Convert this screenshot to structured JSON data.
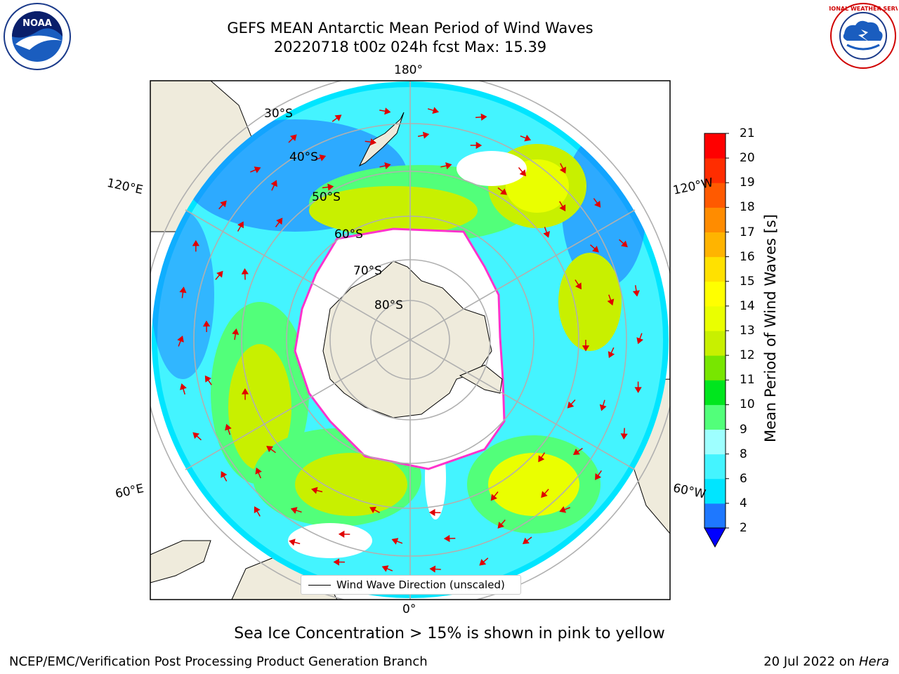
{
  "title": {
    "line1": "GEFS MEAN Antarctic Mean Period of Wind Waves",
    "line2": "20220718 t00z 024h fcst   Max: 15.39"
  },
  "logos": {
    "noaa_text": "NOAA",
    "noaa_ring": "NATIONAL OCEANIC AND ATMOSPHERIC ADMINISTRATION · U.S. DEPARTMENT OF COMMERCE",
    "nws_ring": "NATIONAL WEATHER SERVICE"
  },
  "map": {
    "lon_labels": {
      "top": "180°",
      "bottom": "0°",
      "left_upper": "120°E",
      "left_lower": "60°E",
      "right_upper": "120°W",
      "right_lower": "60°W"
    },
    "lat_labels": [
      "30°S",
      "40°S",
      "50°S",
      "60°S",
      "70°S",
      "80°S"
    ],
    "legend_label": "Wind Wave Direction (unscaled)",
    "colors": {
      "land": "#efebdc",
      "ice_edge": "#ff33cc",
      "arrows": "#e00000",
      "grid": "#b0b0b0"
    }
  },
  "colorbar": {
    "label": "Mean Period of Wind Waves [s]",
    "ticks": [
      "2",
      "4",
      "6",
      "8",
      "9",
      "10",
      "11",
      "12",
      "13",
      "14",
      "15",
      "16",
      "17",
      "18",
      "19",
      "20",
      "21"
    ],
    "colors": [
      "#0000ff",
      "#1e78ff",
      "#00e5ff",
      "#44f4ff",
      "#9effff",
      "#52ff7a",
      "#00e61e",
      "#78e600",
      "#c8f000",
      "#eaff00",
      "#ffff00",
      "#ffe100",
      "#ffb400",
      "#ff8c00",
      "#ff5a00",
      "#ff2d00",
      "#ff0000"
    ]
  },
  "footer": {
    "subtitle": "Sea Ice Concentration > 15% is shown in pink to yellow",
    "credit": "NCEP/EMC/Verification Post Processing Product Generation Branch",
    "date": "20 Jul 2022 on ",
    "machine": "Hera"
  }
}
